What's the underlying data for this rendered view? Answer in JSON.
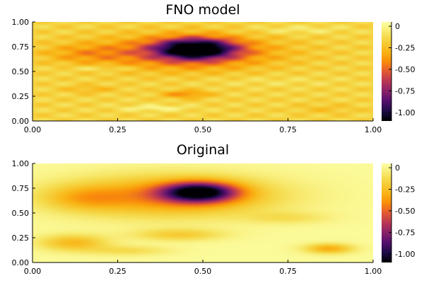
{
  "chart_data": [
    {
      "type": "heatmap",
      "title": "FNO model",
      "xlim": [
        0,
        1
      ],
      "ylim": [
        0,
        1
      ],
      "x_ticks": [
        "0.00",
        "0.25",
        "0.50",
        "0.75",
        "1.00"
      ],
      "y_ticks": [
        "0.00",
        "0.25",
        "0.50",
        "0.75",
        "1.00"
      ],
      "colorbar": {
        "range": [
          -1.1,
          0.05
        ],
        "ticks": [
          0,
          -0.25,
          -0.5,
          -0.75,
          -1.0
        ],
        "tick_labels": [
          "0",
          "-0.25",
          "-0.50",
          "-0.75",
          "-1.00"
        ],
        "colormap": "inferno"
      },
      "field": {
        "background": -0.15,
        "features": [
          {
            "x": 0.48,
            "y": 0.73,
            "rx": 0.11,
            "ry": 0.1,
            "amp": -0.92
          },
          {
            "x": 0.45,
            "y": 0.69,
            "rx": 0.26,
            "ry": 0.17,
            "amp": -0.4
          },
          {
            "x": 0.15,
            "y": 0.68,
            "rx": 0.12,
            "ry": 0.1,
            "amp": -0.15
          },
          {
            "x": 0.45,
            "y": 0.27,
            "rx": 0.07,
            "ry": 0.04,
            "amp": -0.25
          },
          {
            "x": 0.17,
            "y": 0.32,
            "rx": 0.08,
            "ry": 0.04,
            "amp": -0.12
          },
          {
            "x": 0.86,
            "y": 0.12,
            "rx": 0.09,
            "ry": 0.05,
            "amp": -0.08
          },
          {
            "x": 0.36,
            "y": 0.13,
            "rx": 0.1,
            "ry": 0.03,
            "amp": 0.15
          },
          {
            "x": 0.78,
            "y": 0.92,
            "rx": 0.14,
            "ry": 0.04,
            "amp": 0.1
          },
          {
            "x": 0.2,
            "y": 0.53,
            "rx": 0.1,
            "ry": 0.025,
            "amp": 0.12
          },
          {
            "x": 0.7,
            "y": 0.4,
            "rx": 0.2,
            "ry": 0.05,
            "amp": 0.05
          }
        ],
        "ripple": {
          "amp": 0.07,
          "kx": 8.0,
          "ky": 19.0
        }
      }
    },
    {
      "type": "heatmap",
      "title": "Original",
      "xlim": [
        0,
        1
      ],
      "ylim": [
        0,
        1
      ],
      "x_ticks": [
        "0.00",
        "0.25",
        "0.50",
        "0.75",
        "1.00"
      ],
      "y_ticks": [
        "0.00",
        "0.25",
        "0.50",
        "0.75",
        "1.00"
      ],
      "colorbar": {
        "range": [
          -1.1,
          0.05
        ],
        "ticks": [
          0,
          -0.25,
          -0.5,
          -0.75,
          -1.0
        ],
        "tick_labels": [
          "0",
          "-0.25",
          "-0.50",
          "-0.75",
          "-1.00"
        ],
        "colormap": "inferno"
      },
      "field": {
        "background": 0.03,
        "features": [
          {
            "x": 0.49,
            "y": 0.71,
            "rx": 0.11,
            "ry": 0.1,
            "amp": -0.95
          },
          {
            "x": 0.4,
            "y": 0.67,
            "rx": 0.3,
            "ry": 0.2,
            "amp": -0.45
          },
          {
            "x": 0.15,
            "y": 0.65,
            "rx": 0.12,
            "ry": 0.12,
            "amp": -0.2
          },
          {
            "x": 0.12,
            "y": 0.2,
            "rx": 0.1,
            "ry": 0.08,
            "amp": -0.3
          },
          {
            "x": 0.43,
            "y": 0.28,
            "rx": 0.13,
            "ry": 0.06,
            "amp": -0.22
          },
          {
            "x": 0.87,
            "y": 0.14,
            "rx": 0.07,
            "ry": 0.05,
            "amp": -0.35
          },
          {
            "x": 0.28,
            "y": 0.12,
            "rx": 0.12,
            "ry": 0.05,
            "amp": -0.15
          },
          {
            "x": 0.75,
            "y": 0.45,
            "rx": 0.12,
            "ry": 0.06,
            "amp": -0.12
          }
        ],
        "ripple": {
          "amp": 0.0,
          "kx": 0.0,
          "ky": 0.0
        }
      }
    }
  ]
}
